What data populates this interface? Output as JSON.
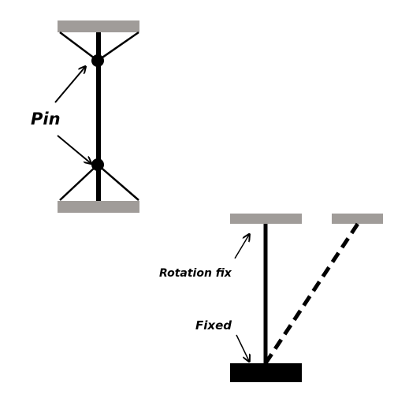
{
  "labels": {
    "pin": "Pin",
    "rotation_fix": "Rotation fix",
    "fixed": "Fixed"
  },
  "colors": {
    "support": "#a09c99",
    "ground": "#000000",
    "member": "#000000",
    "background": "#ffffff"
  }
}
